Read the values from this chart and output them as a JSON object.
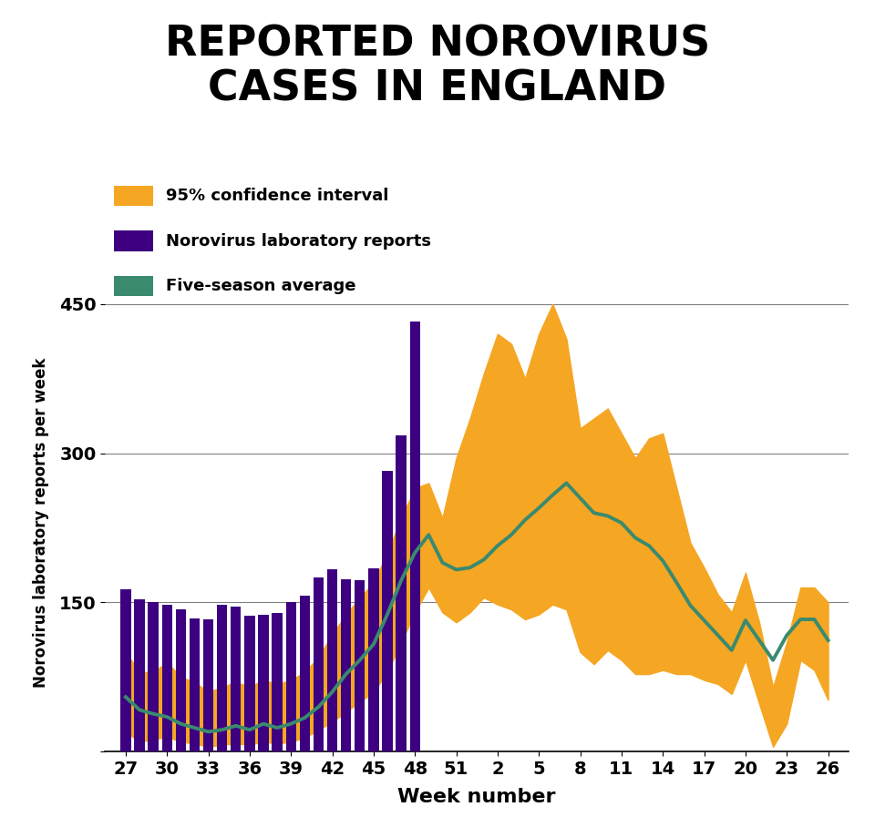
{
  "title": "REPORTED NOROVIRUS\nCASES IN ENGLAND",
  "xlabel": "Week number",
  "ylabel": "Norovirus laboratory reports per week",
  "ylim": [
    0,
    460
  ],
  "yticks": [
    0,
    150,
    300,
    450
  ],
  "bar_color": "#3d0080",
  "ci_color": "#F5A623",
  "avg_color": "#3a8a6e",
  "background_color": "#ffffff",
  "bar_weeks": [
    27,
    28,
    29,
    30,
    31,
    32,
    33,
    34,
    35,
    36,
    37,
    38,
    39,
    40,
    41,
    42,
    43,
    44,
    45,
    46,
    47,
    48
  ],
  "bar_values": [
    163,
    153,
    150,
    148,
    143,
    134,
    133,
    148,
    146,
    137,
    138,
    139,
    150,
    157,
    175,
    183,
    173,
    172,
    184,
    282,
    318,
    432
  ],
  "xtick_labels": [
    "27",
    "30",
    "33",
    "36",
    "39",
    "42",
    "45",
    "48",
    "51",
    "2",
    "5",
    "8",
    "11",
    "14",
    "17",
    "20",
    "23",
    "26"
  ],
  "xtick_positions": [
    27,
    30,
    33,
    36,
    39,
    42,
    45,
    48,
    51,
    54,
    57,
    60,
    63,
    66,
    69,
    72,
    75,
    78
  ],
  "all_x": [
    27,
    28,
    29,
    30,
    31,
    32,
    33,
    34,
    35,
    36,
    37,
    38,
    39,
    40,
    41,
    42,
    43,
    44,
    45,
    46,
    47,
    48,
    49,
    50,
    51,
    52,
    53,
    54,
    55,
    56,
    57,
    58,
    59,
    60,
    61,
    62,
    63,
    64,
    65,
    66,
    67,
    68,
    69,
    70,
    71,
    72,
    73,
    74,
    75,
    76,
    77,
    78
  ],
  "ci_upper": [
    100,
    80,
    80,
    90,
    75,
    70,
    60,
    65,
    70,
    65,
    72,
    68,
    72,
    80,
    95,
    118,
    138,
    155,
    170,
    200,
    235,
    265,
    270,
    235,
    295,
    335,
    380,
    420,
    410,
    375,
    420,
    450,
    415,
    325,
    335,
    345,
    320,
    295,
    315,
    320,
    265,
    210,
    185,
    158,
    140,
    180,
    130,
    65,
    110,
    165,
    165,
    150
  ],
  "ci_lower": [
    20,
    10,
    12,
    15,
    10,
    8,
    5,
    7,
    8,
    7,
    10,
    8,
    10,
    14,
    22,
    30,
    40,
    50,
    60,
    80,
    110,
    140,
    165,
    140,
    130,
    140,
    155,
    148,
    143,
    133,
    138,
    148,
    143,
    100,
    88,
    102,
    92,
    78,
    78,
    82,
    78,
    78,
    72,
    68,
    58,
    92,
    48,
    5,
    28,
    92,
    82,
    52
  ],
  "avg_line": [
    55,
    42,
    38,
    35,
    28,
    24,
    20,
    22,
    26,
    22,
    28,
    24,
    28,
    34,
    45,
    60,
    78,
    92,
    108,
    138,
    172,
    200,
    218,
    190,
    183,
    185,
    193,
    207,
    218,
    233,
    245,
    258,
    270,
    255,
    240,
    237,
    230,
    215,
    207,
    192,
    170,
    147,
    132,
    117,
    102,
    132,
    112,
    92,
    117,
    133,
    133,
    112
  ]
}
